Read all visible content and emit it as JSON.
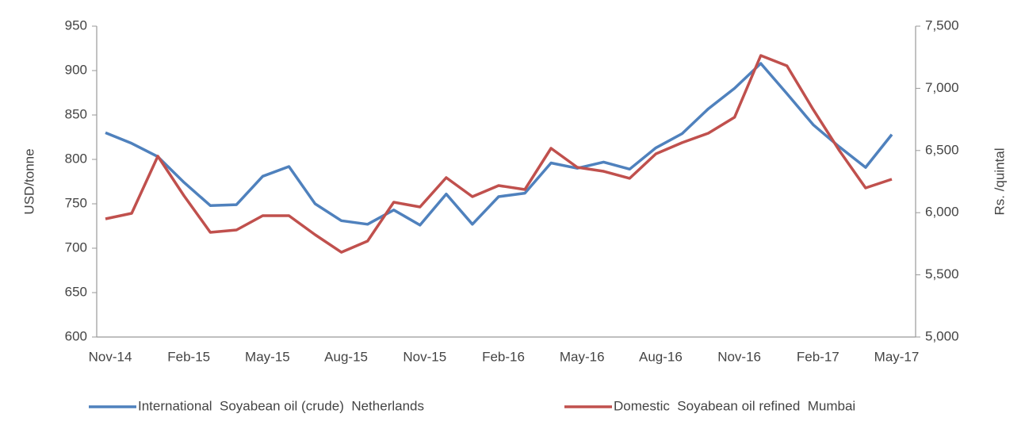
{
  "chart_data": {
    "type": "line",
    "categories": [
      "Nov-14",
      null,
      null,
      "Feb-15",
      null,
      null,
      "May-15",
      null,
      null,
      "Aug-15",
      null,
      null,
      "Nov-15",
      null,
      null,
      "Feb-16",
      null,
      null,
      "May-16",
      null,
      null,
      "Aug-16",
      null,
      null,
      "Nov-16",
      null,
      null,
      "Feb-17",
      null,
      null,
      "May-17"
    ],
    "series": [
      {
        "name": "International  Soyabean oil (crude)  Netherlands",
        "color": "#4f81bd",
        "values": [
          830,
          818,
          803,
          774,
          748,
          749,
          781,
          792,
          750,
          731,
          727,
          743,
          726,
          761,
          727,
          758,
          762,
          796,
          790,
          797,
          789,
          813,
          829,
          857,
          880,
          908,
          874,
          839,
          814,
          791,
          828
        ]
      },
      {
        "name": "Domestic  Soyabean oil refined  Mumbai",
        "color": "#c0504d",
        "axis": "y2",
        "values": [
          5950,
          5995,
          6454,
          6135,
          5842,
          5861,
          5976,
          5976,
          5823,
          5682,
          5772,
          6084,
          6046,
          6282,
          6129,
          6218,
          6186,
          6518,
          6365,
          6333,
          6276,
          6473,
          6563,
          6639,
          6767,
          7264,
          7181,
          6830,
          6499,
          6199,
          6269
        ]
      }
    ],
    "ylabel": "USD/tonne",
    "y2label": "Rs. /quintal",
    "ylim": [
      600,
      950
    ],
    "yticks": [
      600,
      650,
      700,
      750,
      800,
      850,
      900,
      950
    ],
    "y2lim": [
      5000,
      7500
    ],
    "y2ticks": [
      {
        "value": 5000,
        "label": "5,000"
      },
      {
        "value": 5500,
        "label": "5,500"
      },
      {
        "value": 6000,
        "label": "6,000"
      },
      {
        "value": 6500,
        "label": "6,500"
      },
      {
        "value": 7000,
        "label": "7,000"
      },
      {
        "value": 7500,
        "label": "7,500"
      }
    ],
    "legend": "bottom"
  }
}
